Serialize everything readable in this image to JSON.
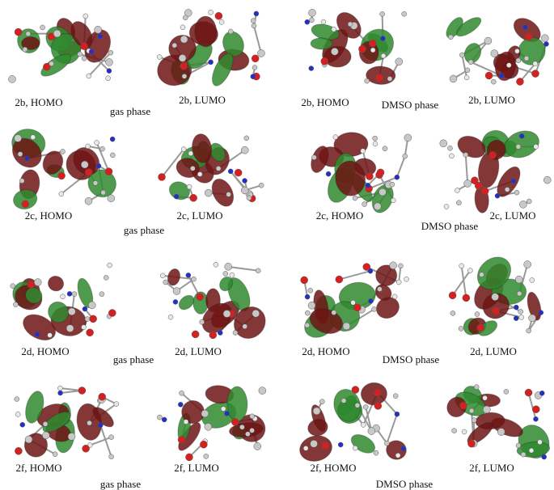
{
  "rows": [
    {
      "panels": [
        "2b, HOMO",
        "2b, LUMO",
        "2b, HOMO",
        "2b, LUMO"
      ],
      "gas_label": "gas phase",
      "dmso_label": "DMSO phase"
    },
    {
      "panels": [
        "2c, HOMO",
        "2c, LUMO",
        "2c, HOMO",
        "2c, LUMO"
      ],
      "gas_label": "gas phase",
      "dmso_label": "DMSO phase"
    },
    {
      "panels": [
        "2d, HOMO",
        "2d, LUMO",
        "2d, HOMO",
        "2d, LUMO"
      ],
      "gas_label": "gas phase",
      "dmso_label": "DMSO phase"
    },
    {
      "panels": [
        "2f, HOMO",
        "2f, LUMO",
        "2f, HOMO",
        "2f, LUMO"
      ],
      "gas_label": "gas phase",
      "dmso_label": "DMSO phase"
    }
  ]
}
